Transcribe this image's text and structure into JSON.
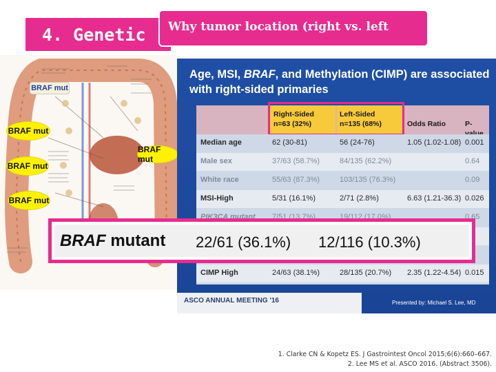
{
  "title": {
    "back_text": "4. Genetic",
    "front_text": "Why tumor location (right vs. left"
  },
  "illustration": {
    "braf_labels": [
      "BRAF mut",
      "BRAF mut",
      "BRAF mut",
      "BRAF mut",
      "BRAF mut"
    ]
  },
  "slide": {
    "heading_parts": [
      "Age, MSI, ",
      "BRAF",
      ", and Methylation (CIMP) are associated with right-sided primaries"
    ],
    "columns": {
      "right": "Right-Sided",
      "right_n": "n=63 (32%)",
      "left": "Left-Sided",
      "left_n": "n=135 (68%)",
      "or": "Odds Ratio",
      "p": "P-value"
    },
    "rows": [
      {
        "label": "Median age",
        "right": "62 (30-81)",
        "left": "56 (24-76)",
        "or": "1.05 (1.02-1.08)",
        "p": "0.001",
        "dim": false
      },
      {
        "label": "Male sex",
        "right": "37/63 (58.7%)",
        "left": "84/135 (62.2%)",
        "or": "",
        "p": "0.64",
        "dim": true
      },
      {
        "label": "White race",
        "right": "55/63 (87.3%)",
        "left": "103/135 (76.3%)",
        "or": "",
        "p": "0.09",
        "dim": true
      },
      {
        "label": "MSI-High",
        "right": "5/31 (16.1%)",
        "left": "2/71 (2.8%)",
        "or": "6.63 (1.21-36.3)",
        "p": "0.026",
        "dim": false
      },
      {
        "label": "PIK3CA mutant",
        "right": "7/51 (13.7%)",
        "left": "19/112 (17.0%)",
        "or": "",
        "p": "0.65",
        "dim": true
      },
      {
        "label": "",
        "right": "",
        "left": "",
        "or": "",
        "p": "",
        "dim": false
      },
      {
        "label": "",
        "right": "",
        "left": "",
        "or": "",
        "p": "",
        "dim": false
      },
      {
        "label": "CIMP High",
        "right": "24/63 (38.1%)",
        "left": "28/135 (20.7%)",
        "or": "2.35 (1.22-4.54)",
        "p": "0.015",
        "dim": false
      }
    ],
    "footer_asco": "ASCO ANNUAL MEETING '16",
    "footer_presenter": "Presented by: Michael S. Lee, MD"
  },
  "braf_highlight": {
    "label_italic": "BRAF",
    "label_rest": " mutant",
    "right_value": "22/61 (36.1%)",
    "left_value": "12/116 (10.3%)"
  },
  "references": [
    "1.  Clarke CN & Kopetz ES. J Gastrointest Oncol 2015;6(6):660–667.",
    "2.  Lee MS et al. ASCO 2016. (Abstract 3506)."
  ],
  "colors": {
    "accent": "#e62c8f",
    "slide_blue": "#1f4fa5",
    "highlight_yellow": "#f7ca3c",
    "bubble_yellow": "#fff200"
  }
}
